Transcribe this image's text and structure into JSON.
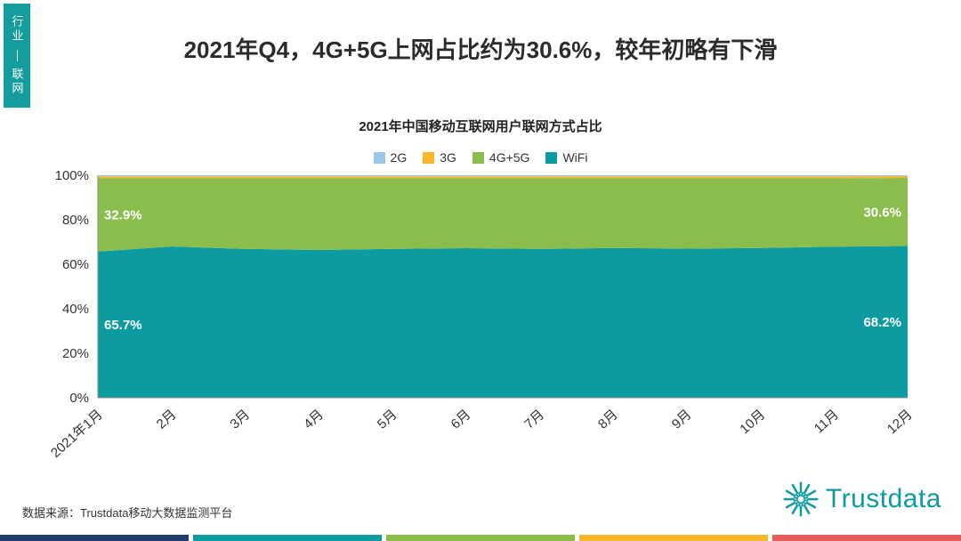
{
  "page": {
    "side_tab": {
      "top": "行业",
      "bottom": "联网"
    },
    "title": "2021年Q4，4G+5G上网占比约为30.6%，较年初略有下滑",
    "source": "数据来源：Trustdata移动大数据监测平台",
    "logo_text": "Trustdata"
  },
  "colors": {
    "teal": "#0b9ba1",
    "green": "#8abd4c",
    "yellow": "#f8b62d",
    "light_blue": "#9cc7e6",
    "tab_bg": "#159c9c",
    "strip": [
      "#1f3f6e",
      "#0b9ba1",
      "#8abd4c",
      "#f8b62d",
      "#e95c5c"
    ]
  },
  "chart_data": {
    "type": "area",
    "stacked": true,
    "percent": true,
    "title": "2021年中国移动互联网用户联网方式占比",
    "categories": [
      "2021年1月",
      "2月",
      "3月",
      "4月",
      "5月",
      "6月",
      "7月",
      "8月",
      "9月",
      "10月",
      "11月",
      "12月"
    ],
    "series": [
      {
        "name": "WiFi",
        "color": "#0b9ba1",
        "values": [
          65.7,
          68.0,
          66.9,
          66.4,
          66.9,
          67.2,
          66.9,
          67.3,
          67.0,
          67.3,
          67.9,
          68.2
        ]
      },
      {
        "name": "4G+5G",
        "color": "#8abd4c",
        "values": [
          32.9,
          30.6,
          31.7,
          32.2,
          31.7,
          31.4,
          31.7,
          31.3,
          31.6,
          31.3,
          30.7,
          30.6
        ]
      },
      {
        "name": "3G",
        "color": "#f8b62d",
        "values": [
          0.9,
          0.9,
          0.9,
          0.9,
          0.9,
          0.9,
          0.9,
          0.9,
          0.9,
          0.9,
          0.9,
          0.8
        ]
      },
      {
        "name": "2G",
        "color": "#9cc7e6",
        "values": [
          0.5,
          0.5,
          0.5,
          0.5,
          0.5,
          0.5,
          0.5,
          0.5,
          0.5,
          0.5,
          0.5,
          0.4
        ]
      }
    ],
    "legend": [
      "2G",
      "3G",
      "4G+5G",
      "WiFi"
    ],
    "ylim": [
      0,
      100
    ],
    "yticks": [
      "0%",
      "20%",
      "40%",
      "60%",
      "80%",
      "100%"
    ],
    "grid": false,
    "legend_position": "top-center",
    "annotations": [
      {
        "text": "32.9%",
        "x_index": 0,
        "series": "4G+5G"
      },
      {
        "text": "30.6%",
        "x_index": 11,
        "series": "4G+5G"
      },
      {
        "text": "65.7%",
        "x_index": 0,
        "series": "WiFi"
      },
      {
        "text": "68.2%",
        "x_index": 11,
        "series": "WiFi"
      }
    ]
  }
}
